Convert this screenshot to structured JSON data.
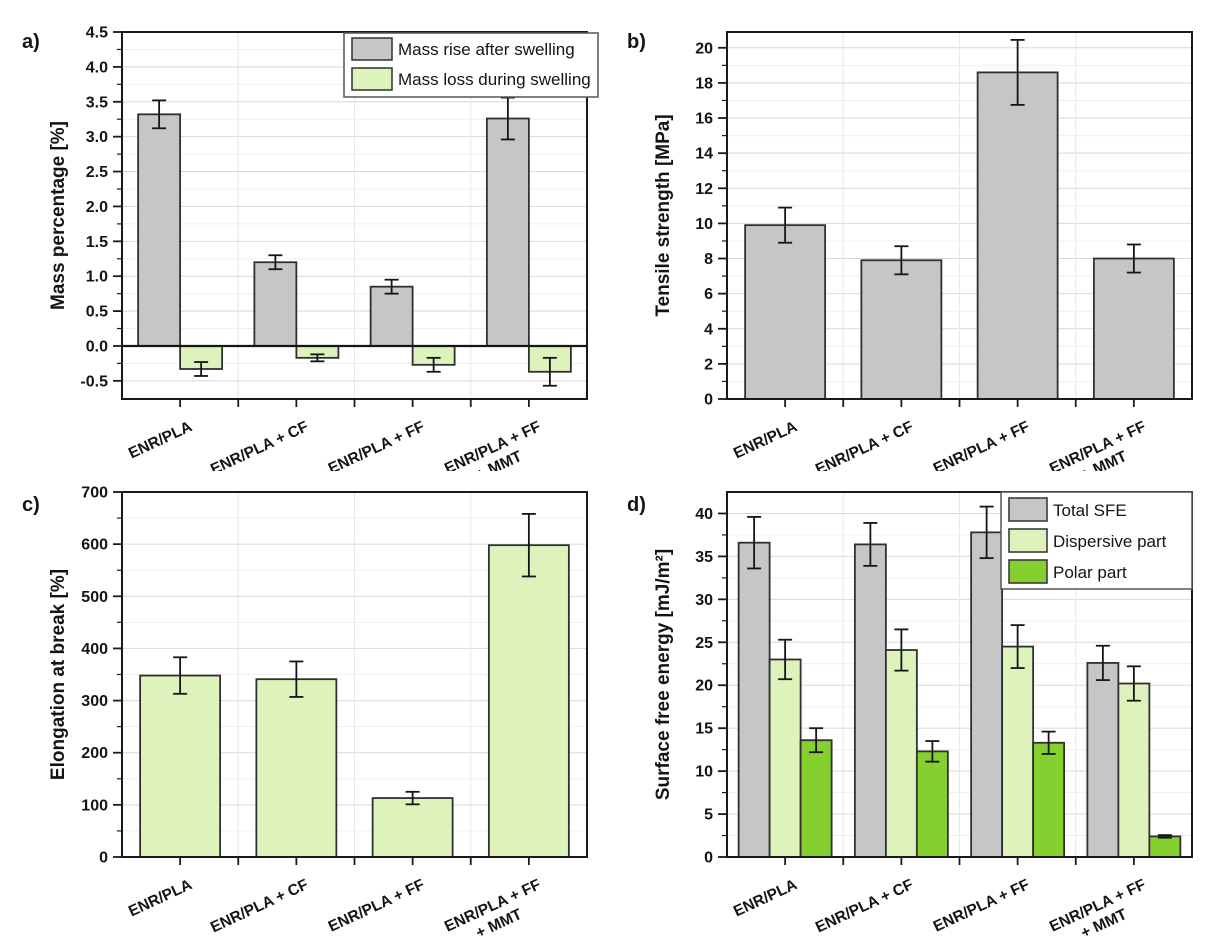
{
  "figure_title": "",
  "categories_shared": [
    "ENR/PLA",
    "ENR/PLA + CF",
    "ENR/PLA + FF",
    "ENR/PLA + FF + MMT"
  ],
  "colors": {
    "bar_gray": "#c6c6c6",
    "bar_light_green": "#def2bc",
    "bar_green": "#85d02f",
    "bar_border": "#303030",
    "error_bar": "#151515",
    "axis_frame": "#1a1a1a",
    "grid_major": "#d8d8d8",
    "grid_minor": "#efefef",
    "grid_vertical": "#e7e7e7"
  },
  "chart_data": [
    {
      "panel": "a",
      "letter": "a)",
      "type": "bar",
      "title": "",
      "xlabel": "",
      "ylabel": "Mass percentage [%]",
      "ylim": [
        -0.76,
        4.5
      ],
      "yticks": [
        -0.5,
        0.0,
        0.5,
        1.0,
        1.5,
        2.0,
        2.5,
        3.0,
        3.5,
        4.0,
        4.5
      ],
      "ytick_labels": [
        "-0.5",
        "0.0",
        "0.5",
        "1.0",
        "1.5",
        "2.0",
        "2.5",
        "3.0",
        "3.5",
        "4.0",
        "4.5"
      ],
      "grid": true,
      "zero_line": true,
      "legend_position": "top-right",
      "categories": [
        [
          "ENR/PLA"
        ],
        [
          "ENR/PLA + CF"
        ],
        [
          "ENR/PLA + FF"
        ],
        [
          "ENR/PLA + FF",
          "+ MMT"
        ]
      ],
      "series": [
        {
          "name": "Mass rise after swelling",
          "color": "#c6c6c6",
          "values": [
            3.32,
            1.2,
            0.85,
            3.26
          ],
          "errors": [
            0.2,
            0.1,
            0.1,
            0.3
          ]
        },
        {
          "name": "Mass loss during swelling",
          "color": "#def2bc",
          "values": [
            -0.33,
            -0.17,
            -0.27,
            -0.37
          ],
          "errors": [
            0.1,
            0.05,
            0.1,
            0.2
          ]
        }
      ]
    },
    {
      "panel": "b",
      "letter": "b)",
      "type": "bar",
      "title": "",
      "xlabel": "",
      "ylabel": "Tensile strength [MPa]",
      "ylim": [
        0,
        20.9
      ],
      "yticks": [
        0,
        2,
        4,
        6,
        8,
        10,
        12,
        14,
        16,
        18,
        20
      ],
      "ytick_labels": [
        "0",
        "2",
        "4",
        "6",
        "8",
        "10",
        "12",
        "14",
        "16",
        "18",
        "20"
      ],
      "grid": true,
      "zero_line": false,
      "legend_position": null,
      "categories": [
        [
          "ENR/PLA"
        ],
        [
          "ENR/PLA + CF"
        ],
        [
          "ENR/PLA + FF"
        ],
        [
          "ENR/PLA + FF",
          "+ MMT"
        ]
      ],
      "series": [
        {
          "color": "#c6c6c6",
          "values": [
            9.9,
            7.9,
            18.6,
            8.0
          ],
          "errors": [
            1.0,
            0.8,
            1.85,
            0.8
          ]
        }
      ]
    },
    {
      "panel": "c",
      "letter": "c)",
      "type": "bar",
      "title": "",
      "xlabel": "",
      "ylabel": "Elongation at break [%]",
      "ylim": [
        0,
        700
      ],
      "yticks": [
        0,
        100,
        200,
        300,
        400,
        500,
        600,
        700
      ],
      "ytick_labels": [
        "0",
        "100",
        "200",
        "300",
        "400",
        "500",
        "600",
        "700"
      ],
      "grid": true,
      "zero_line": false,
      "legend_position": null,
      "categories": [
        [
          "ENR/PLA"
        ],
        [
          "ENR/PLA + CF"
        ],
        [
          "ENR/PLA + FF"
        ],
        [
          "ENR/PLA + FF",
          "+ MMT"
        ]
      ],
      "series": [
        {
          "color": "#def2bc",
          "values": [
            348,
            341,
            113,
            598
          ],
          "errors": [
            35,
            34,
            12,
            60
          ]
        }
      ]
    },
    {
      "panel": "d",
      "letter": "d)",
      "type": "bar",
      "title": "",
      "xlabel": "",
      "ylabel": "Surface free energy [mJ/m²]",
      "ylim": [
        0,
        42.5
      ],
      "yticks": [
        0,
        5,
        10,
        15,
        20,
        25,
        30,
        35,
        40
      ],
      "ytick_labels": [
        "0",
        "5",
        "10",
        "15",
        "20",
        "25",
        "30",
        "35",
        "40"
      ],
      "grid": true,
      "zero_line": false,
      "legend_position": "top-right",
      "categories": [
        [
          "ENR/PLA"
        ],
        [
          "ENR/PLA + CF"
        ],
        [
          "ENR/PLA + FF"
        ],
        [
          "ENR/PLA + FF",
          "+ MMT"
        ]
      ],
      "series": [
        {
          "name": "Total SFE",
          "color": "#c6c6c6",
          "values": [
            36.6,
            36.4,
            37.8,
            22.6
          ],
          "errors": [
            3.0,
            2.5,
            3.0,
            2.0
          ]
        },
        {
          "name": "Dispersive part",
          "color": "#def2bc",
          "values": [
            23.0,
            24.1,
            24.5,
            20.2
          ],
          "errors": [
            2.3,
            2.4,
            2.5,
            2.0
          ]
        },
        {
          "name": "Polar part",
          "color": "#85d02f",
          "values": [
            13.6,
            12.3,
            13.3,
            2.4
          ],
          "errors": [
            1.4,
            1.2,
            1.3,
            0.15
          ]
        }
      ]
    }
  ]
}
